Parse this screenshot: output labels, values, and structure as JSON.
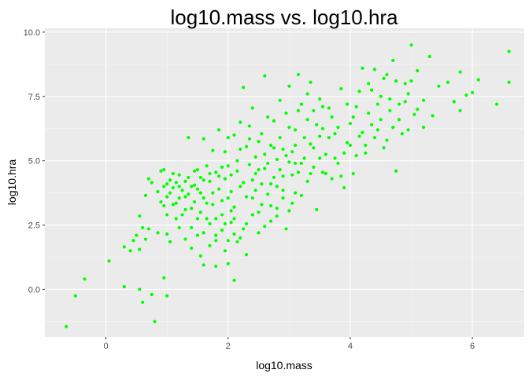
{
  "chart_data": {
    "type": "scatter",
    "title": "log10.mass vs. log10.hra",
    "xlabel": "log10.mass",
    "ylabel": "log10.hra",
    "xlim": [
      -1.0,
      6.85
    ],
    "ylim": [
      -1.85,
      10.15
    ],
    "x_ticks": [
      0,
      2,
      4,
      6
    ],
    "x_tick_labels": [
      "0",
      "2",
      "4",
      "6"
    ],
    "y_ticks": [
      0.0,
      2.5,
      5.0,
      7.5,
      10.0
    ],
    "y_tick_labels": [
      "0.0",
      "2.5",
      "5.0",
      "7.5",
      "10.0"
    ],
    "grid": true,
    "legend": "none",
    "colors": {
      "point": "#00ff00",
      "panel": "#ebebeb",
      "grid_major": "#ffffff",
      "grid_minor": "#f5f5f5",
      "tick_label": "#4d4d4d"
    },
    "series": [
      {
        "points": [
          [
            -0.65,
            -1.45
          ],
          [
            -0.5,
            -0.25
          ],
          [
            -0.35,
            0.4
          ],
          [
            0.05,
            1.1
          ],
          [
            0.3,
            0.1
          ],
          [
            0.55,
            0.0
          ],
          [
            0.6,
            -0.5
          ],
          [
            0.8,
            -1.25
          ],
          [
            0.75,
            -0.2
          ],
          [
            0.95,
            0.45
          ],
          [
            1.0,
            -0.25
          ],
          [
            0.3,
            1.65
          ],
          [
            0.4,
            1.5
          ],
          [
            0.45,
            1.9
          ],
          [
            0.5,
            2.1
          ],
          [
            0.55,
            1.55
          ],
          [
            0.6,
            2.4
          ],
          [
            0.65,
            1.95
          ],
          [
            0.7,
            2.35
          ],
          [
            0.55,
            2.85
          ],
          [
            0.65,
            3.65
          ],
          [
            0.7,
            4.3
          ],
          [
            0.75,
            4.15
          ],
          [
            0.85,
            2.2
          ],
          [
            0.85,
            3.8
          ],
          [
            0.9,
            4.6
          ],
          [
            0.9,
            3.4
          ],
          [
            0.95,
            4.0
          ],
          [
            0.95,
            3.25
          ],
          [
            0.95,
            4.65
          ],
          [
            1.0,
            4.1
          ],
          [
            1.0,
            3.6
          ],
          [
            1.0,
            2.9
          ],
          [
            1.0,
            2.15
          ],
          [
            1.05,
            3.75
          ],
          [
            1.05,
            4.25
          ],
          [
            1.05,
            1.85
          ],
          [
            1.1,
            3.95
          ],
          [
            1.1,
            3.3
          ],
          [
            1.15,
            2.75
          ],
          [
            1.15,
            4.15
          ],
          [
            1.2,
            3.55
          ],
          [
            1.2,
            4.45
          ],
          [
            1.25,
            3.85
          ],
          [
            1.25,
            2.9
          ],
          [
            1.3,
            4.2
          ],
          [
            1.3,
            3.1
          ],
          [
            1.35,
            3.7
          ],
          [
            1.35,
            5.9
          ],
          [
            1.4,
            4.0
          ],
          [
            1.4,
            2.4
          ],
          [
            1.45,
            3.4
          ],
          [
            1.45,
            4.6
          ],
          [
            1.5,
            3.9
          ],
          [
            1.5,
            2.1
          ],
          [
            1.55,
            4.35
          ],
          [
            1.55,
            1.3
          ],
          [
            1.55,
            3.0
          ],
          [
            1.6,
            5.85
          ],
          [
            1.6,
            3.55
          ],
          [
            1.6,
            0.95
          ],
          [
            1.65,
            4.8
          ],
          [
            1.65,
            2.75
          ],
          [
            1.7,
            4.2
          ],
          [
            1.7,
            1.7
          ],
          [
            1.75,
            3.3
          ],
          [
            1.75,
            5.4
          ],
          [
            1.8,
            2.1
          ],
          [
            1.8,
            4.55
          ],
          [
            1.8,
            0.9
          ],
          [
            1.85,
            3.9
          ],
          [
            1.85,
            6.2
          ],
          [
            1.9,
            2.9
          ],
          [
            1.9,
            4.75
          ],
          [
            1.95,
            5.35
          ],
          [
            1.95,
            1.5
          ],
          [
            2.0,
            3.55
          ],
          [
            2.0,
            1.0
          ],
          [
            2.05,
            4.45
          ],
          [
            2.05,
            2.6
          ],
          [
            2.1,
            6.0
          ],
          [
            2.1,
            3.2
          ],
          [
            2.1,
            0.35
          ],
          [
            2.15,
            5.0
          ],
          [
            2.15,
            1.85
          ],
          [
            2.2,
            4.0
          ],
          [
            2.2,
            6.5
          ],
          [
            2.25,
            2.35
          ],
          [
            2.25,
            7.85
          ],
          [
            2.3,
            3.6
          ],
          [
            2.3,
            5.55
          ],
          [
            2.3,
            1.35
          ],
          [
            2.35,
            4.85
          ],
          [
            2.35,
            6.35
          ],
          [
            2.4,
            2.9
          ],
          [
            2.4,
            4.25
          ],
          [
            2.4,
            7.05
          ],
          [
            2.45,
            3.85
          ],
          [
            2.45,
            5.15
          ],
          [
            2.5,
            2.2
          ],
          [
            2.5,
            4.65
          ],
          [
            2.55,
            6.05
          ],
          [
            2.55,
            3.3
          ],
          [
            2.6,
            5.25
          ],
          [
            2.6,
            8.3
          ],
          [
            2.65,
            3.7
          ],
          [
            2.65,
            4.9
          ],
          [
            2.7,
            2.65
          ],
          [
            2.7,
            5.6
          ],
          [
            2.75,
            4.35
          ],
          [
            2.75,
            6.55
          ],
          [
            2.8,
            3.15
          ],
          [
            2.8,
            5.05
          ],
          [
            2.85,
            4.65
          ],
          [
            2.85,
            7.35
          ],
          [
            2.9,
            5.45
          ],
          [
            2.9,
            3.85
          ],
          [
            2.95,
            6.85
          ],
          [
            2.95,
            2.35
          ],
          [
            3.0,
            4.95
          ],
          [
            3.0,
            7.9
          ],
          [
            3.05,
            4.45
          ],
          [
            3.05,
            3.35
          ],
          [
            3.1,
            6.2
          ],
          [
            3.1,
            5.6
          ],
          [
            3.15,
            4.55
          ],
          [
            3.15,
            8.35
          ],
          [
            3.2,
            3.65
          ],
          [
            3.2,
            7.2
          ],
          [
            3.25,
            5.1
          ],
          [
            3.3,
            6.6
          ],
          [
            3.3,
            4.2
          ],
          [
            3.35,
            5.65
          ],
          [
            3.35,
            8.05
          ],
          [
            3.4,
            4.75
          ],
          [
            3.4,
            6.95
          ],
          [
            3.45,
            3.1
          ],
          [
            3.5,
            5.95
          ],
          [
            3.5,
            7.4
          ],
          [
            3.55,
            4.55
          ],
          [
            3.55,
            6.25
          ],
          [
            3.6,
            5.25
          ],
          [
            3.65,
            7.05
          ],
          [
            3.7,
            4.3
          ],
          [
            3.75,
            6.05
          ],
          [
            3.8,
            4.9
          ],
          [
            3.85,
            7.8
          ],
          [
            3.9,
            3.95
          ],
          [
            3.95,
            5.7
          ],
          [
            4.0,
            6.45
          ],
          [
            4.05,
            4.5
          ],
          [
            4.1,
            7.1
          ],
          [
            4.15,
            5.95
          ],
          [
            4.2,
            8.6
          ],
          [
            4.25,
            5.3
          ],
          [
            4.3,
            6.85
          ],
          [
            4.35,
            7.75
          ],
          [
            4.4,
            8.55
          ],
          [
            4.45,
            6.2
          ],
          [
            4.5,
            7.5
          ],
          [
            4.55,
            5.5
          ],
          [
            4.6,
            8.35
          ],
          [
            4.65,
            6.95
          ],
          [
            4.7,
            8.9
          ],
          [
            4.75,
            4.6
          ],
          [
            4.8,
            7.2
          ],
          [
            4.85,
            6.05
          ],
          [
            4.9,
            8.0
          ],
          [
            4.95,
            7.6
          ],
          [
            5.0,
            9.5
          ],
          [
            5.05,
            6.8
          ],
          [
            5.1,
            8.5
          ],
          [
            5.2,
            7.35
          ],
          [
            5.3,
            9.05
          ],
          [
            5.35,
            6.75
          ],
          [
            5.45,
            7.9
          ],
          [
            5.6,
            8.05
          ],
          [
            5.7,
            7.3
          ],
          [
            5.8,
            8.45
          ],
          [
            5.8,
            6.95
          ],
          [
            5.9,
            7.55
          ],
          [
            6.0,
            7.65
          ],
          [
            6.1,
            8.15
          ],
          [
            6.4,
            7.2
          ],
          [
            6.6,
            9.25
          ],
          [
            6.6,
            8.05
          ],
          [
            1.95,
            4.3
          ],
          [
            2.0,
            5.9
          ],
          [
            2.05,
            3.05
          ],
          [
            2.15,
            4.6
          ],
          [
            2.2,
            5.45
          ],
          [
            2.25,
            4.15
          ],
          [
            2.35,
            5.85
          ],
          [
            2.45,
            4.5
          ],
          [
            2.5,
            5.75
          ],
          [
            2.55,
            4.1
          ],
          [
            2.6,
            4.7
          ],
          [
            2.65,
            6.7
          ],
          [
            2.7,
            4.1
          ],
          [
            2.75,
            5.5
          ],
          [
            2.8,
            4.0
          ],
          [
            2.85,
            5.9
          ],
          [
            2.9,
            4.4
          ],
          [
            2.95,
            5.2
          ],
          [
            3.0,
            6.3
          ],
          [
            3.05,
            5.35
          ],
          [
            3.1,
            4.9
          ],
          [
            3.15,
            6.95
          ],
          [
            3.2,
            4.9
          ],
          [
            3.25,
            5.9
          ],
          [
            3.3,
            7.6
          ],
          [
            3.35,
            4.5
          ],
          [
            3.4,
            5.5
          ],
          [
            3.45,
            6.4
          ],
          [
            3.5,
            5.1
          ],
          [
            3.55,
            7.1
          ],
          [
            3.6,
            4.5
          ],
          [
            3.65,
            5.9
          ],
          [
            3.7,
            6.7
          ],
          [
            3.75,
            5.1
          ],
          [
            3.8,
            6.3
          ],
          [
            3.85,
            4.4
          ],
          [
            3.9,
            5.3
          ],
          [
            3.95,
            7.2
          ],
          [
            4.0,
            5.6
          ],
          [
            4.05,
            6.7
          ],
          [
            4.1,
            5.2
          ],
          [
            4.15,
            7.7
          ],
          [
            4.2,
            6.1
          ],
          [
            4.25,
            5.6
          ],
          [
            4.3,
            8.0
          ],
          [
            4.35,
            6.4
          ],
          [
            4.4,
            5.9
          ],
          [
            4.45,
            7.2
          ],
          [
            4.5,
            6.6
          ],
          [
            4.55,
            8.2
          ],
          [
            4.6,
            5.8
          ],
          [
            4.65,
            7.4
          ],
          [
            4.7,
            6.3
          ],
          [
            4.75,
            8.1
          ],
          [
            4.8,
            6.6
          ],
          [
            4.9,
            7.3
          ],
          [
            4.95,
            6.2
          ],
          [
            5.0,
            8.1
          ],
          [
            5.1,
            7.0
          ],
          [
            5.2,
            6.3
          ],
          [
            1.1,
            4.5
          ],
          [
            1.15,
            3.35
          ],
          [
            1.2,
            4.0
          ],
          [
            1.3,
            3.6
          ],
          [
            1.35,
            4.35
          ],
          [
            1.4,
            3.15
          ],
          [
            1.45,
            4.05
          ],
          [
            1.5,
            4.65
          ],
          [
            1.55,
            3.75
          ],
          [
            1.6,
            4.25
          ],
          [
            1.65,
            3.35
          ],
          [
            1.7,
            4.5
          ],
          [
            1.75,
            3.75
          ],
          [
            1.8,
            2.75
          ],
          [
            1.85,
            4.4
          ],
          [
            1.9,
            3.45
          ],
          [
            1.95,
            2.55
          ],
          [
            2.0,
            4.8
          ],
          [
            2.05,
            3.8
          ],
          [
            2.1,
            2.15
          ],
          [
            1.2,
            2.4
          ],
          [
            1.3,
            1.95
          ],
          [
            1.4,
            1.6
          ],
          [
            1.5,
            2.75
          ],
          [
            1.6,
            2.2
          ],
          [
            1.7,
            2.55
          ],
          [
            1.8,
            1.9
          ],
          [
            1.9,
            2.3
          ],
          [
            2.0,
            1.9
          ],
          [
            2.1,
            2.75
          ],
          [
            2.2,
            2.0
          ],
          [
            2.3,
            2.55
          ],
          [
            2.4,
            3.55
          ],
          [
            2.5,
            3.0
          ],
          [
            2.6,
            2.45
          ],
          [
            2.7,
            3.25
          ],
          [
            2.8,
            2.85
          ],
          [
            2.9,
            3.55
          ],
          [
            3.0,
            3.05
          ],
          [
            3.1,
            3.75
          ]
        ]
      }
    ]
  }
}
